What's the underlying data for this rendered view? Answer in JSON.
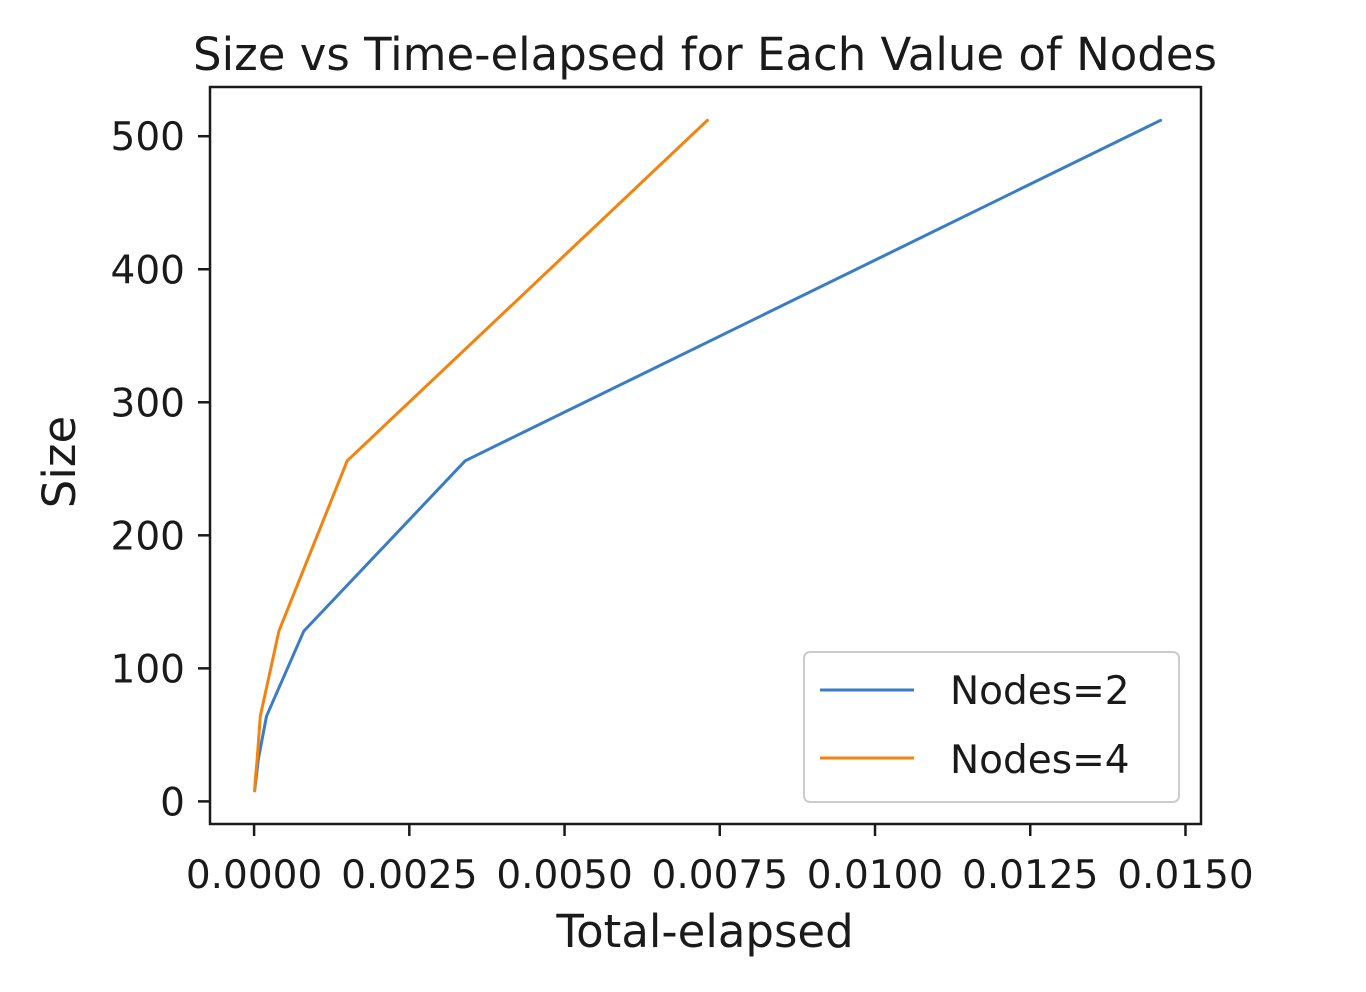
{
  "chart_data": {
    "type": "line",
    "title": "Size vs Time-elapsed for Each Value of Nodes",
    "xlabel": "Total-elapsed",
    "ylabel": "Size",
    "xlim": [
      -0.00071,
      0.01525
    ],
    "ylim": [
      -17,
      537
    ],
    "xticks": [
      0,
      0.0025,
      0.005,
      0.0075,
      0.01,
      0.0125,
      0.015
    ],
    "xtick_labels": [
      "0.0000",
      "0.0025",
      "0.0050",
      "0.0075",
      "0.0100",
      "0.0125",
      "0.0150"
    ],
    "yticks": [
      0,
      100,
      200,
      300,
      400,
      500
    ],
    "ytick_labels": [
      "0",
      "100",
      "200",
      "300",
      "400",
      "500"
    ],
    "grid": false,
    "legend_position": "lower right",
    "series": [
      {
        "name": "Nodes=2",
        "color": "#3b7dc4",
        "x": [
          1e-05,
          3e-05,
          7e-05,
          0.0002,
          0.0008,
          0.0034,
          0.0146
        ],
        "y": [
          8,
          16,
          32,
          64,
          128,
          256,
          512
        ]
      },
      {
        "name": "Nodes=4",
        "color": "#f5820d",
        "x": [
          1e-05,
          2e-05,
          5e-05,
          0.0001,
          0.0004,
          0.0015,
          0.0073
        ],
        "y": [
          8,
          16,
          32,
          64,
          128,
          256,
          512
        ]
      }
    ]
  }
}
